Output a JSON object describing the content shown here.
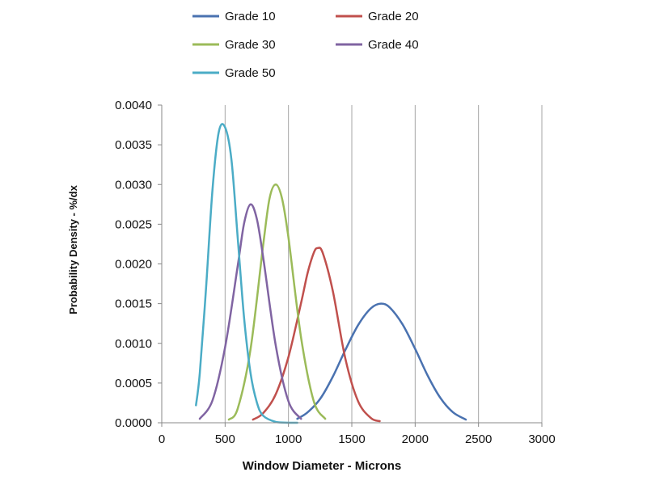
{
  "chart_data": {
    "type": "line",
    "title": "",
    "xlabel": "Window Diameter - Microns",
    "ylabel": "Probability Density - %/dx",
    "xlim": [
      0,
      3000
    ],
    "ylim": [
      0,
      0.004
    ],
    "x_ticks": [
      0,
      500,
      1000,
      1500,
      2000,
      2500,
      3000
    ],
    "x_tick_labels": [
      "0",
      "500",
      "1000",
      "1500",
      "2000",
      "2500",
      "3000"
    ],
    "y_ticks": [
      0,
      0.0005,
      0.001,
      0.0015,
      0.002,
      0.0025,
      0.003,
      0.0035,
      0.004
    ],
    "y_tick_labels": [
      "0.0000",
      "0.0005",
      "0.0010",
      "0.0015",
      "0.0020",
      "0.0025",
      "0.0030",
      "0.0035",
      "0.0040"
    ],
    "grid": {
      "vertical": true,
      "horizontal": false
    },
    "legend_position": "top",
    "series": [
      {
        "name": "Grade 10",
        "color": "#4a72b0",
        "x": [
          1070,
          1150,
          1250,
          1350,
          1450,
          1550,
          1650,
          1730,
          1800,
          1900,
          2000,
          2100,
          2200,
          2300,
          2400
        ],
        "y": [
          5e-05,
          0.00013,
          0.0003,
          0.00058,
          0.00092,
          0.00123,
          0.00144,
          0.0015,
          0.00145,
          0.00124,
          0.00093,
          0.00059,
          0.00031,
          0.00013,
          4e-05
        ]
      },
      {
        "name": "Grade 20",
        "color": "#c0504d",
        "x": [
          720,
          800,
          900,
          1000,
          1100,
          1150,
          1200,
          1230,
          1270,
          1350,
          1450,
          1550,
          1650,
          1720
        ],
        "y": [
          4e-05,
          0.00012,
          0.00036,
          0.00083,
          0.00151,
          0.00188,
          0.00214,
          0.0022,
          0.00214,
          0.00166,
          0.0008,
          0.00027,
          6e-05,
          2e-05
        ]
      },
      {
        "name": "Grade 30",
        "color": "#9bbb59",
        "x": [
          530,
          600,
          700,
          800,
          850,
          900,
          950,
          1000,
          1100,
          1200,
          1290
        ],
        "y": [
          4e-05,
          0.00018,
          0.00092,
          0.00223,
          0.00282,
          0.003,
          0.00282,
          0.00233,
          0.00107,
          0.00027,
          5e-05
        ]
      },
      {
        "name": "Grade 40",
        "color": "#8064a2",
        "x": [
          300,
          400,
          500,
          600,
          650,
          700,
          750,
          800,
          900,
          1000,
          1100
        ],
        "y": [
          5e-05,
          0.00028,
          0.00095,
          0.00198,
          0.00251,
          0.00275,
          0.00257,
          0.00209,
          0.00097,
          0.00027,
          5e-05
        ]
      },
      {
        "name": "Grade 50",
        "color": "#4bacc6",
        "x": [
          270,
          300,
          350,
          400,
          450,
          500,
          550,
          600,
          650,
          700,
          750,
          800,
          900,
          1000,
          1070
        ],
        "y": [
          0.00022,
          0.00062,
          0.0017,
          0.00293,
          0.00366,
          0.00372,
          0.00331,
          0.00232,
          0.00132,
          0.00063,
          0.00026,
          9e-05,
          1e-05,
          0.0,
          0.0
        ]
      }
    ]
  }
}
